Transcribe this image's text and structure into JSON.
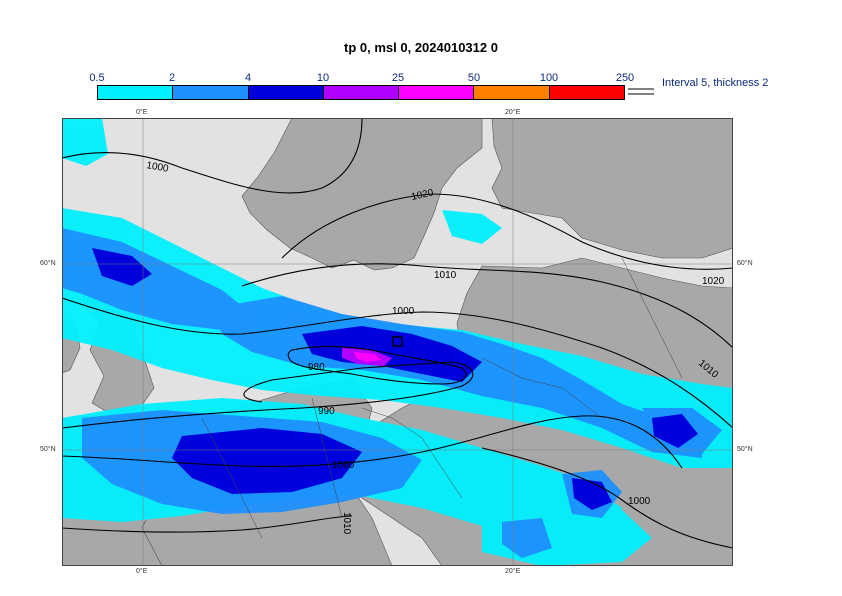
{
  "title": "tp 0, msl 0, 2024010312 0",
  "legend": {
    "ticks": [
      "0.5",
      "2",
      "4",
      "10",
      "25",
      "50",
      "100",
      "250"
    ],
    "colors": [
      "#00f0ff",
      "#1e90ff",
      "#0000dd",
      "#b000ff",
      "#ff00ff",
      "#ff8000",
      "#ff0000"
    ],
    "note": "Interval 5, thickness 2"
  },
  "axes": {
    "lon_top": [
      "0°E",
      "20°E"
    ],
    "lon_bottom": [
      "0°E",
      "20°E"
    ],
    "lat_left": [
      "60°N",
      "50°N"
    ],
    "lat_right": [
      "60°N",
      "50°N"
    ]
  },
  "isobar_labels": [
    "1000",
    "1020",
    "1010",
    "1000",
    "980",
    "990",
    "1000",
    "1010",
    "1020",
    "1010",
    "1000"
  ],
  "colors": {
    "land": "#a8a8a8",
    "sea": "#e2e2e2",
    "isobar": "#000000"
  }
}
